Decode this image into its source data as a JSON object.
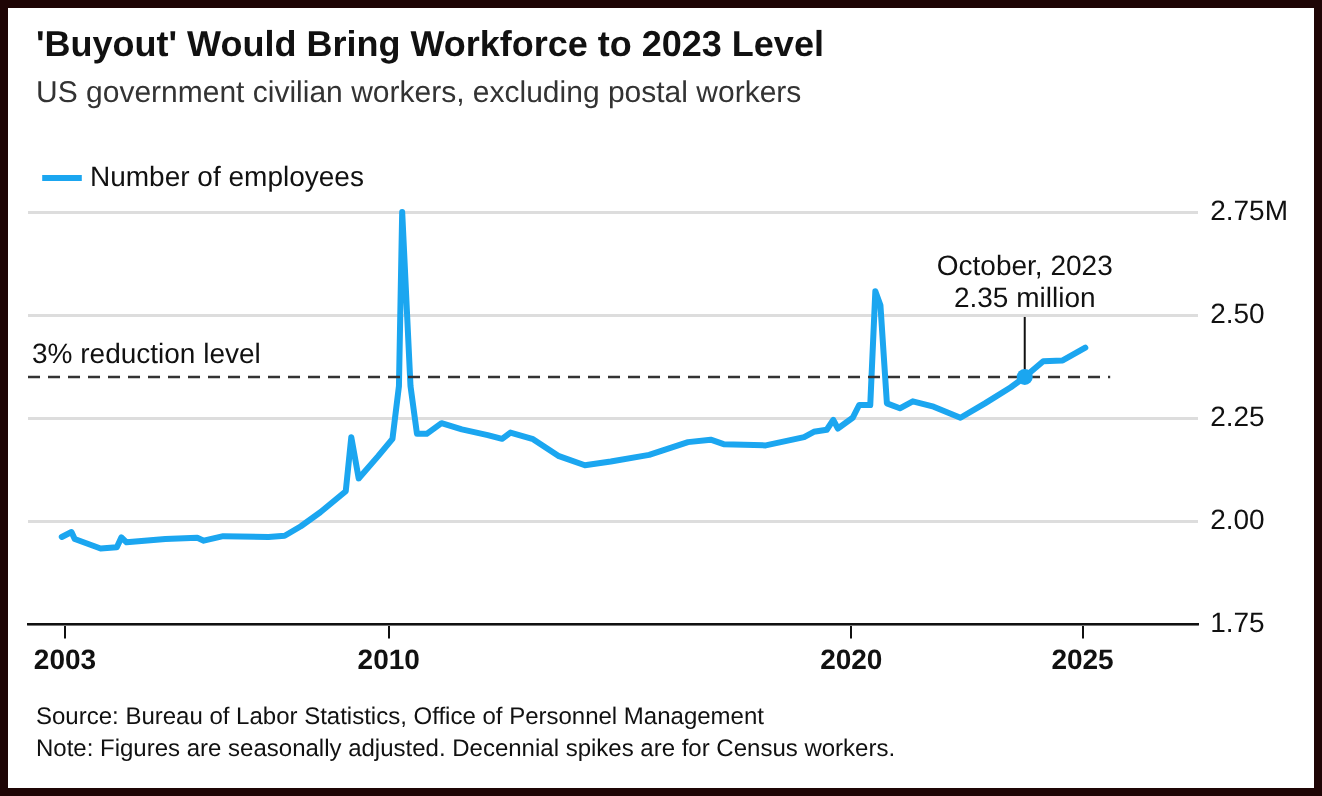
{
  "chart_data": {
    "type": "line",
    "title": "'Buyout' Would Bring Workforce to 2023 Level",
    "subtitle": "US government civilian workers, excluding postal workers",
    "x": [
      2002.93,
      2003.14,
      2003.21,
      2003.77,
      2004.12,
      2004.22,
      2004.33,
      2005.17,
      2005.86,
      2006.0,
      2006.42,
      2007.4,
      2007.75,
      2008.1,
      2008.52,
      2009.07,
      2009.19,
      2009.35,
      2009.77,
      2010.08,
      2010.22,
      2010.29,
      2010.47,
      2010.61,
      2010.82,
      2011.14,
      2011.58,
      2012.14,
      2012.45,
      2012.63,
      2013.12,
      2013.68,
      2014.24,
      2014.8,
      2015.63,
      2016.47,
      2016.96,
      2017.24,
      2018.15,
      2018.98,
      2019.19,
      2019.47,
      2019.61,
      2019.71,
      2020.03,
      2020.17,
      2020.41,
      2020.52,
      2020.63,
      2020.77,
      2021.05,
      2021.33,
      2021.78,
      2022.36,
      2022.89,
      2023.45,
      2023.73,
      2024.15,
      2024.57,
      2025.06
    ],
    "series": [
      {
        "name": "Number of employees",
        "color": "#1ba6f0",
        "values": [
          1.962,
          1.974,
          1.957,
          1.934,
          1.937,
          1.961,
          1.949,
          1.957,
          1.96,
          1.953,
          1.964,
          1.962,
          1.965,
          1.988,
          2.022,
          2.073,
          2.204,
          2.104,
          2.158,
          2.2,
          2.328,
          2.75,
          2.328,
          2.212,
          2.212,
          2.238,
          2.223,
          2.209,
          2.2,
          2.215,
          2.199,
          2.158,
          2.136,
          2.145,
          2.161,
          2.192,
          2.198,
          2.187,
          2.184,
          2.204,
          2.217,
          2.222,
          2.246,
          2.225,
          2.251,
          2.282,
          2.282,
          2.558,
          2.524,
          2.286,
          2.274,
          2.291,
          2.278,
          2.251,
          2.286,
          2.325,
          2.348,
          2.388,
          2.39,
          2.421
        ]
      }
    ],
    "xlim": [
      2002.2,
      2027.5
    ],
    "xticks": [
      2003,
      2010,
      2020,
      2025
    ],
    "ylim": [
      1.75,
      2.75
    ],
    "yticks": [
      {
        "value": 1.75,
        "label": "1.75"
      },
      {
        "value": 2.0,
        "label": "2.00"
      },
      {
        "value": 2.25,
        "label": "2.25"
      },
      {
        "value": 2.5,
        "label": "2.50"
      },
      {
        "value": 2.75,
        "label": "2.75M"
      }
    ],
    "grid": "y",
    "legend": "top left",
    "marker": "none",
    "line_style": "solid",
    "ref_lines": [
      {
        "axis": "y",
        "value": 2.35,
        "label": "3% reduction level",
        "color": "#333333",
        "line_style": "dashed"
      }
    ],
    "annotations": [
      {
        "text": "October, 2023\n2.35 million",
        "x": 2023.75,
        "y": 2.35
      },
      "Source: Bureau of Labor Statistics, Office of Personnel Management",
      "Note: Figures are seasonally adjusted. Decennial spikes are for Census workers."
    ]
  }
}
